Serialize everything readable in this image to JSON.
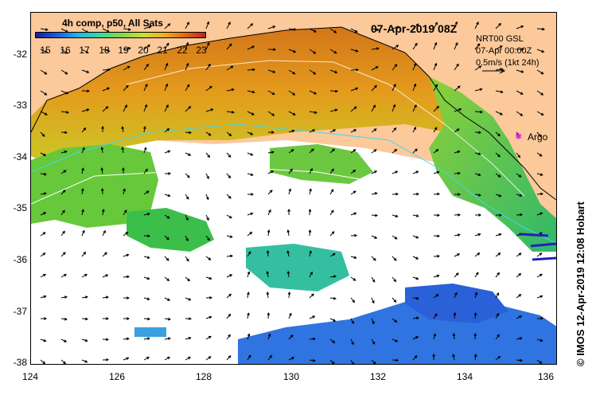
{
  "header": {
    "date_title": "07-Apr-2019 08Z",
    "colorbar_title": "4h comp, p50, All Sats"
  },
  "colorbar": {
    "labels": [
      "15",
      "16",
      "17",
      "18",
      "19",
      "20",
      "21",
      "22",
      "23"
    ],
    "colors": [
      "#1a1aa0",
      "#1e5fe0",
      "#22b5e8",
      "#3ad8a0",
      "#7ed84a",
      "#c8e030",
      "#f0b020",
      "#e06a10",
      "#c0201a"
    ]
  },
  "info": {
    "model": "NRT00 GSL",
    "time": "07-Apr 00:00Z",
    "scale": "0.5m/s (1kt 24h)"
  },
  "argo": {
    "label": "Argo"
  },
  "credit": "© IMOS 12-Apr-2019 12:08 Hobart",
  "axes": {
    "lat_labels": [
      "-32",
      "-33",
      "-34",
      "-35",
      "-36",
      "-37",
      "-38"
    ],
    "lon_labels": [
      "124",
      "126",
      "128",
      "130",
      "132",
      "134",
      "136"
    ]
  },
  "map_colors": {
    "land": "#fcc99a",
    "warm": "#e08a18",
    "mid": "#c8d820",
    "cool": "#5ccc3c",
    "cyan": "#3ac8c8",
    "blue": "#3a7ae0",
    "no_data": "#ffffff"
  }
}
